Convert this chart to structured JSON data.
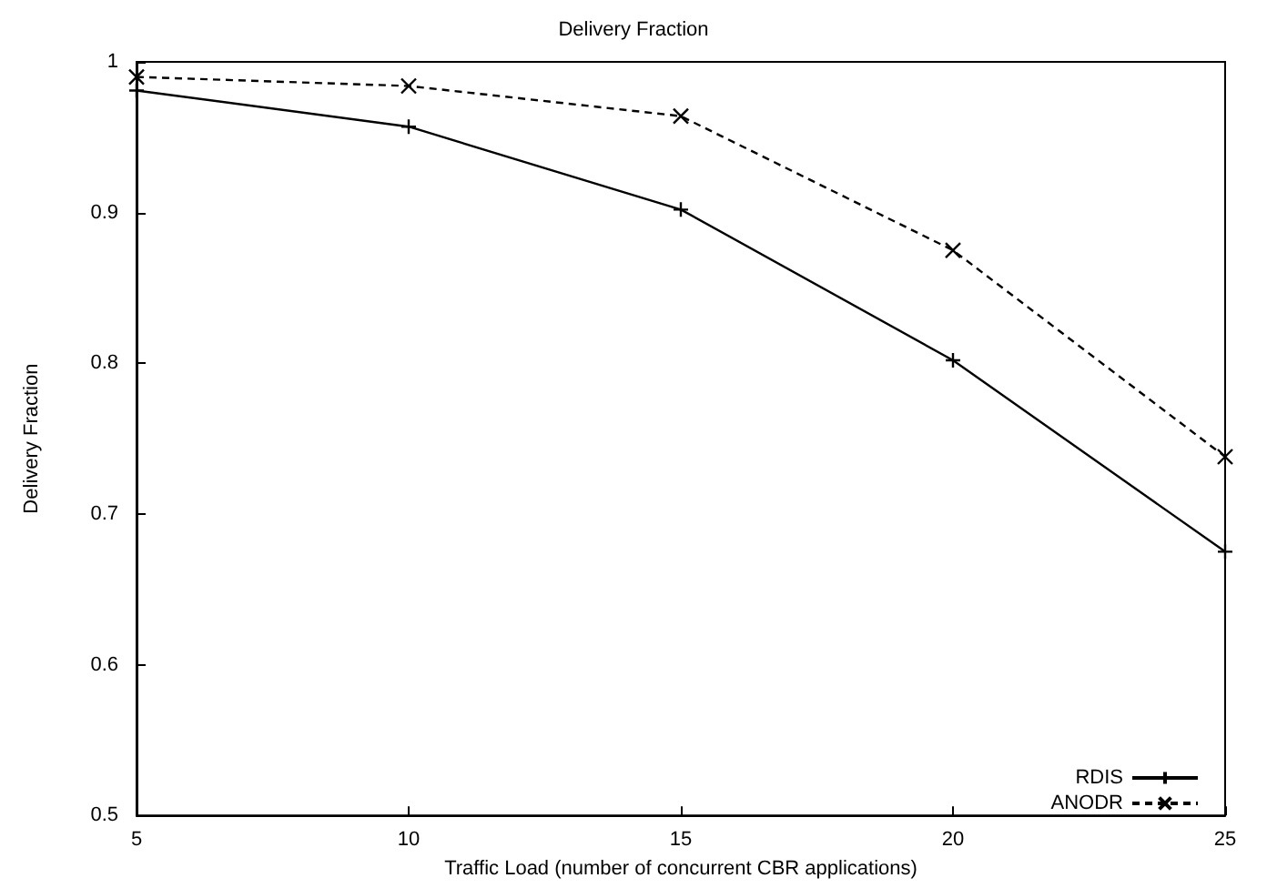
{
  "chart_data": {
    "type": "line",
    "title": "Delivery Fraction",
    "xlabel": "Traffic Load (number of concurrent CBR applications)",
    "ylabel": "Delivery Fraction",
    "x": [
      5,
      10,
      15,
      20,
      25
    ],
    "series": [
      {
        "name": "RDIS",
        "color": "#000000",
        "marker": "plus",
        "line_style": "solid",
        "values": [
          0.981,
          0.957,
          0.902,
          0.802,
          0.675
        ]
      },
      {
        "name": "ANODR",
        "color": "#000000",
        "marker": "cross",
        "line_style": "dashed",
        "values": [
          0.99,
          0.984,
          0.964,
          0.875,
          0.738
        ]
      }
    ],
    "xlim": [
      5,
      25
    ],
    "xticks": [
      5,
      10,
      15,
      20,
      25
    ],
    "ylim": [
      0.5,
      1
    ],
    "yticks": [
      0.5,
      0.6,
      0.7,
      0.8,
      0.9,
      1
    ],
    "grid": false,
    "legend": "bottom right"
  }
}
